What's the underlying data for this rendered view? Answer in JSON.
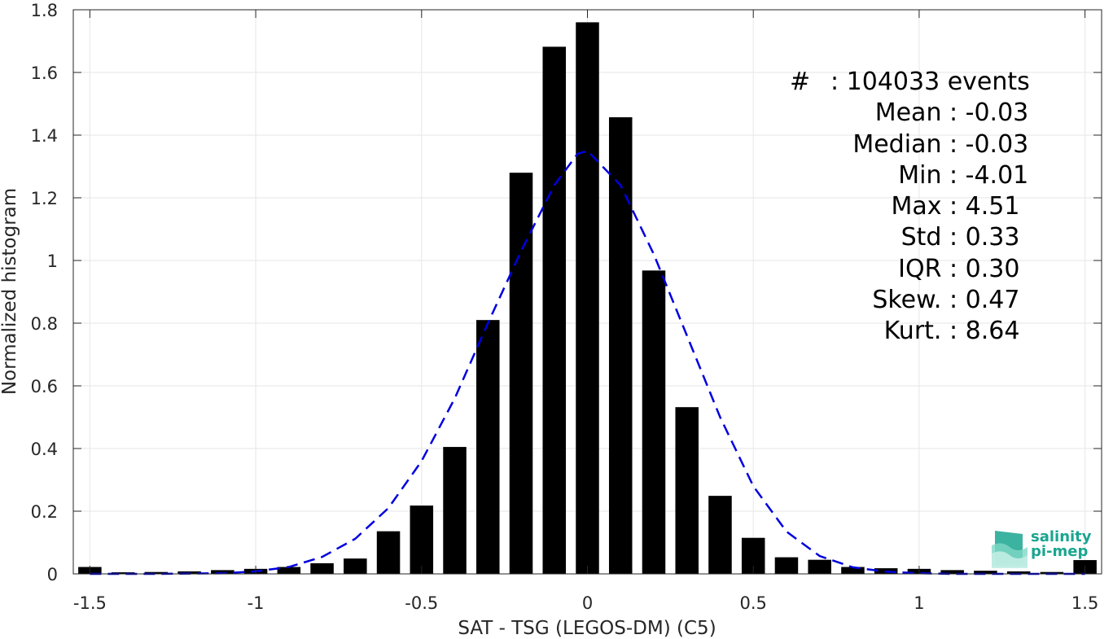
{
  "chart_data": {
    "type": "bar",
    "xlabel": "SAT - TSG (LEGOS-DM) (C5)",
    "ylabel": "Normalized histogram",
    "xlim": [
      -1.55,
      1.55
    ],
    "ylim": [
      0,
      1.8
    ],
    "xticks": [
      -1.5,
      -1,
      -0.5,
      0,
      0.5,
      1,
      1.5
    ],
    "xtick_labels": [
      "-1.5",
      "-1",
      "-0.5",
      "0",
      "0.5",
      "1",
      "1.5"
    ],
    "yticks": [
      0,
      0.2,
      0.4,
      0.6,
      0.8,
      1,
      1.2,
      1.4,
      1.6,
      1.8
    ],
    "ytick_labels": [
      "0",
      "0.2",
      "0.4",
      "0.6",
      "0.8",
      "1",
      "1.2",
      "1.4",
      "1.6",
      "1.8"
    ],
    "grid": true,
    "bar_color": "#000000",
    "fit_color": "#0000e0",
    "bins": {
      "x": [
        -1.5,
        -1.4,
        -1.3,
        -1.2,
        -1.1,
        -1.0,
        -0.9,
        -0.8,
        -0.7,
        -0.6,
        -0.5,
        -0.4,
        -0.3,
        -0.2,
        -0.1,
        0.0,
        0.1,
        0.2,
        0.3,
        0.4,
        0.5,
        0.6,
        0.7,
        0.8,
        0.9,
        1.0,
        1.1,
        1.2,
        1.3,
        1.4,
        1.5
      ],
      "values": [
        0.022,
        0.005,
        0.006,
        0.008,
        0.012,
        0.016,
        0.022,
        0.034,
        0.049,
        0.136,
        0.218,
        0.405,
        0.81,
        1.28,
        1.682,
        1.76,
        1.457,
        0.968,
        0.532,
        0.249,
        0.115,
        0.053,
        0.045,
        0.022,
        0.018,
        0.016,
        0.012,
        0.01,
        0.008,
        0.006,
        0.044
      ]
    },
    "gaussian_fit": {
      "style": "dashed",
      "x": [
        -1.5,
        -1.4,
        -1.3,
        -1.2,
        -1.1,
        -1.0,
        -0.9,
        -0.8,
        -0.7,
        -0.6,
        -0.5,
        -0.4,
        -0.3,
        -0.2,
        -0.1,
        -0.03,
        0.0,
        0.1,
        0.2,
        0.3,
        0.4,
        0.5,
        0.6,
        0.7,
        0.8,
        0.9,
        1.0,
        1.1,
        1.2,
        1.3,
        1.4,
        1.5
      ],
      "y": [
        0.0,
        0.0,
        0.0,
        0.001,
        0.002,
        0.008,
        0.022,
        0.054,
        0.112,
        0.21,
        0.36,
        0.56,
        0.8,
        1.03,
        1.24,
        1.34,
        1.35,
        1.24,
        1.02,
        0.76,
        0.5,
        0.28,
        0.135,
        0.057,
        0.021,
        0.007,
        0.002,
        0.0,
        0.0,
        0.0,
        0.0,
        0.0
      ]
    },
    "annotations": [
      {
        "label": "#  ",
        "value": ": 104033 events"
      },
      {
        "label": "Mean ",
        "value": ": -0.03"
      },
      {
        "label": "Median ",
        "value": ": -0.03"
      },
      {
        "label": "Min ",
        "value": ": -4.01"
      },
      {
        "label": "Max ",
        "value": ": 4.51"
      },
      {
        "label": "Std ",
        "value": ": 0.33"
      },
      {
        "label": "IQR ",
        "value": ": 0.30"
      },
      {
        "label": "Skew. ",
        "value": ": 0.47"
      },
      {
        "label": "Kurt. ",
        "value": ": 8.64"
      }
    ]
  },
  "logo": {
    "line1": "salinity",
    "line2": "pi-mep",
    "color": "#1aa58f"
  }
}
